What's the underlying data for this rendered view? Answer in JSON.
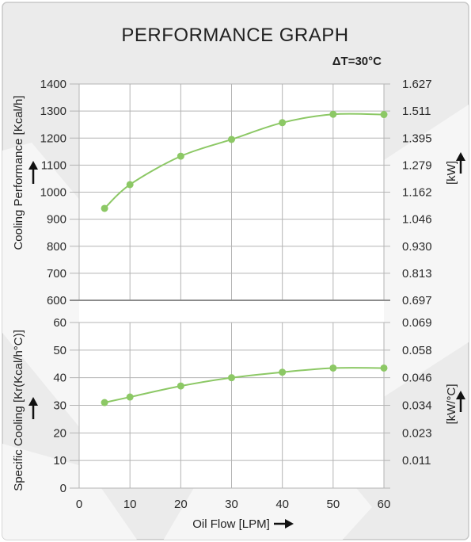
{
  "title": "PERFORMANCE GRAPH",
  "condition": "ΔT=30°C",
  "x_axis": {
    "label": "Oil Flow [LPM]",
    "ticks": [
      0,
      10,
      20,
      30,
      40,
      50,
      60
    ]
  },
  "colors": {
    "series": "#8cc865",
    "grid": "#b4b4b4",
    "panel": "#ebebeb",
    "border": "#c8c8c8"
  },
  "chart_data": [
    {
      "type": "line",
      "ylabel": "Cooling Performance [Kcal/h]",
      "y2label": "[kW]",
      "xlim": [
        0,
        60
      ],
      "ylim": [
        600,
        1400
      ],
      "yticks": [
        600,
        700,
        800,
        900,
        1000,
        1100,
        1200,
        1300,
        1400
      ],
      "y2ticks": [
        "0.697",
        "0.813",
        "0.930",
        "1.046",
        "1.162",
        "1.279",
        "1.395",
        "1.511",
        "1.627"
      ],
      "grid": true,
      "series": [
        {
          "x": [
            5,
            10,
            20,
            30,
            40,
            50,
            60
          ],
          "y": [
            940,
            1028,
            1133,
            1195,
            1257,
            1288,
            1287
          ]
        }
      ]
    },
    {
      "type": "line",
      "ylabel": "Specific Cooling [Kr(Kcal/h°C)]",
      "y2label": "[kW/°C]",
      "xlim": [
        0,
        60
      ],
      "ylim": [
        0,
        60
      ],
      "yticks": [
        0,
        10,
        20,
        30,
        40,
        50,
        60
      ],
      "y2ticks": [
        "",
        "0.011",
        "0.023",
        "0.034",
        "0.046",
        "0.058",
        "0.069"
      ],
      "grid": true,
      "series": [
        {
          "x": [
            5,
            10,
            20,
            30,
            40,
            50,
            60
          ],
          "y": [
            31,
            33,
            37,
            40,
            42,
            43.5,
            43.5
          ]
        }
      ]
    }
  ]
}
